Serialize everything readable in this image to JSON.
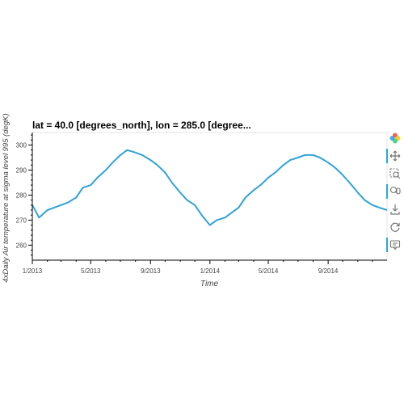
{
  "toolbar": {
    "items": [
      {
        "name": "bokeh-logo-icon",
        "active": false
      },
      {
        "name": "pan-icon",
        "active": true
      },
      {
        "name": "box-zoom-icon",
        "active": false
      },
      {
        "name": "wheel-zoom-icon",
        "active": true
      },
      {
        "name": "save-icon",
        "active": false
      },
      {
        "name": "reset-icon",
        "active": false
      },
      {
        "name": "hover-icon",
        "active": true
      }
    ]
  },
  "chart_data": {
    "type": "line",
    "title": "lat = 40.0 [degrees_north], lon = 285.0 [degree...",
    "xlabel": "Time",
    "ylabel": "4xDaily Air temperature at sigma level 995 (degK)",
    "x_range": [
      "2013-01-01",
      "2014-12-31"
    ],
    "ylim": [
      254,
      305
    ],
    "yticks": [
      260,
      270,
      280,
      290,
      300
    ],
    "xticks": [
      {
        "date": "2013-01-01",
        "label": "1/2013"
      },
      {
        "date": "2013-05-01",
        "label": "5/2013"
      },
      {
        "date": "2013-09-01",
        "label": "9/2013"
      },
      {
        "date": "2014-01-01",
        "label": "1/2014"
      },
      {
        "date": "2014-05-01",
        "label": "5/2014"
      },
      {
        "date": "2014-09-01",
        "label": "9/2014"
      }
    ],
    "line_color": "#30a2da",
    "grid": false,
    "series": [
      {
        "x": [
          "2013-01-01",
          "2013-01-15",
          "2013-02-01",
          "2013-02-15",
          "2013-03-01",
          "2013-03-15",
          "2013-04-01",
          "2013-04-15",
          "2013-05-01",
          "2013-05-15",
          "2013-06-01",
          "2013-06-15",
          "2013-07-01",
          "2013-07-15",
          "2013-08-01",
          "2013-08-15",
          "2013-09-01",
          "2013-09-15",
          "2013-10-01",
          "2013-10-15",
          "2013-11-01",
          "2013-11-15",
          "2013-12-01",
          "2013-12-15",
          "2014-01-01",
          "2014-01-15",
          "2014-02-01",
          "2014-02-15",
          "2014-03-01",
          "2014-03-15",
          "2014-04-01",
          "2014-04-15",
          "2014-05-01",
          "2014-05-15",
          "2014-06-01",
          "2014-06-15",
          "2014-07-01",
          "2014-07-15",
          "2014-08-01",
          "2014-08-15",
          "2014-09-01",
          "2014-09-15",
          "2014-10-01",
          "2014-10-15",
          "2014-11-01",
          "2014-11-15",
          "2014-12-01",
          "2014-12-15",
          "2014-12-31"
        ],
        "y": [
          276,
          271,
          274,
          275,
          276,
          277,
          279,
          283,
          284,
          287,
          290,
          293,
          296,
          298,
          297,
          296,
          294,
          292,
          289,
          285,
          281,
          278,
          276,
          272,
          268,
          270,
          271,
          273,
          275,
          279,
          282,
          284,
          287,
          289,
          292,
          294,
          295,
          296,
          296,
          295,
          293,
          291,
          288,
          285,
          281,
          278,
          276,
          275,
          274
        ]
      }
    ]
  }
}
